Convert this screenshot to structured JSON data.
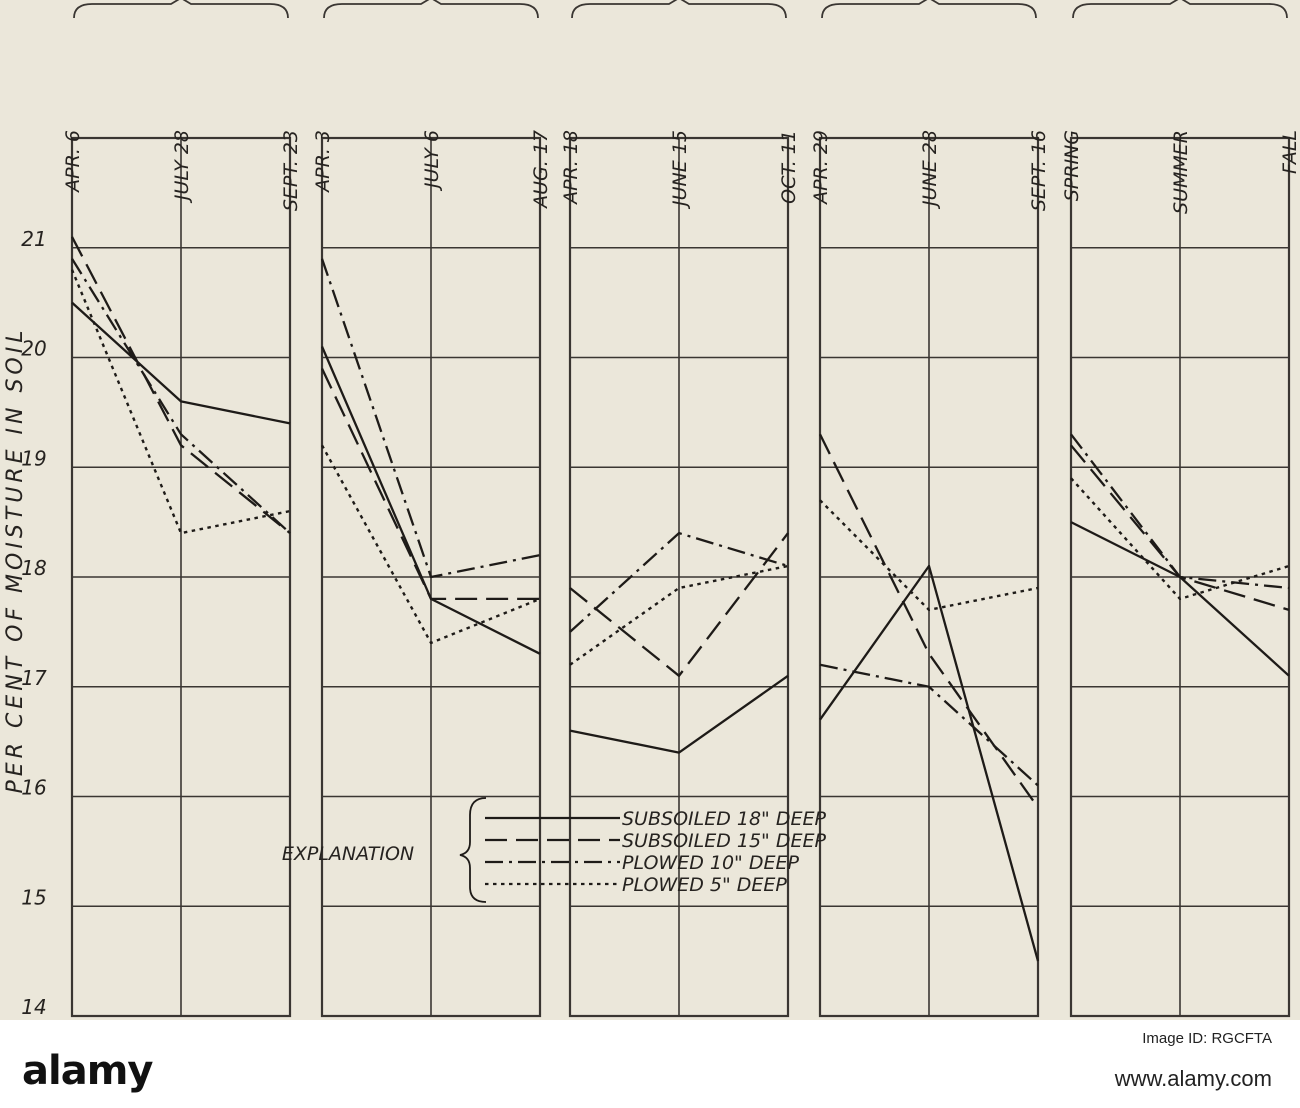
{
  "chart_data": {
    "type": "line",
    "ylabel": "PER CENT OF MOISTURE IN SOIL",
    "ylim": [
      14,
      22
    ],
    "yticks": [
      14,
      15,
      16,
      17,
      18,
      19,
      20,
      21
    ],
    "grid": true,
    "legend": {
      "title": "EXPLANATION",
      "placement": "bottom-center",
      "entries": [
        {
          "label": "SUBSOILED 18\" DEEP",
          "style": "solid"
        },
        {
          "label": "SUBSOILED 15\" DEEP",
          "style": "dashed"
        },
        {
          "label": "PLOWED 10\" DEEP",
          "style": "dash-dot"
        },
        {
          "label": "PLOWED 5\" DEEP",
          "style": "dotted"
        }
      ]
    },
    "panels": [
      {
        "categories": [
          "APR. 6",
          "JULY 28",
          "SEPT. 23"
        ],
        "series": [
          {
            "name": "SUBSOILED 18\" DEEP",
            "values": [
              20.5,
              19.6,
              19.4
            ]
          },
          {
            "name": "SUBSOILED 15\" DEEP",
            "values": [
              21.1,
              19.2,
              18.4
            ]
          },
          {
            "name": "PLOWED 10\" DEEP",
            "values": [
              20.9,
              19.3,
              18.4
            ]
          },
          {
            "name": "PLOWED 5\" DEEP",
            "values": [
              20.8,
              18.4,
              18.6
            ]
          }
        ]
      },
      {
        "categories": [
          "APR. 3",
          "JULY 6",
          "AUG. 17"
        ],
        "series": [
          {
            "name": "SUBSOILED 18\" DEEP",
            "values": [
              20.1,
              17.8,
              17.3
            ]
          },
          {
            "name": "SUBSOILED 15\" DEEP",
            "values": [
              19.9,
              17.8,
              17.8
            ]
          },
          {
            "name": "PLOWED 10\" DEEP",
            "values": [
              20.9,
              18.0,
              18.2
            ]
          },
          {
            "name": "PLOWED 5\" DEEP",
            "values": [
              19.2,
              17.4,
              17.8
            ]
          }
        ]
      },
      {
        "categories": [
          "APR. 18",
          "JUNE 15",
          "OCT. 11"
        ],
        "series": [
          {
            "name": "SUBSOILED 18\" DEEP",
            "values": [
              16.6,
              16.4,
              17.1
            ]
          },
          {
            "name": "SUBSOILED 15\" DEEP",
            "values": [
              17.9,
              17.1,
              18.4
            ]
          },
          {
            "name": "PLOWED 10\" DEEP",
            "values": [
              17.5,
              18.4,
              18.1
            ]
          },
          {
            "name": "PLOWED 5\" DEEP",
            "values": [
              17.2,
              17.9,
              18.1
            ]
          }
        ]
      },
      {
        "categories": [
          "APR. 29",
          "JUNE 28",
          "SEPT. 16"
        ],
        "series": [
          {
            "name": "SUBSOILED 18\" DEEP",
            "values": [
              16.7,
              18.1,
              14.5
            ]
          },
          {
            "name": "SUBSOILED 15\" DEEP",
            "values": [
              19.3,
              17.3,
              15.9
            ]
          },
          {
            "name": "PLOWED 10\" DEEP",
            "values": [
              17.2,
              17.0,
              16.1
            ]
          },
          {
            "name": "PLOWED 5\" DEEP",
            "values": [
              18.7,
              17.7,
              17.9
            ]
          }
        ]
      },
      {
        "categories": [
          "SPRING",
          "SUMMER",
          "FALL"
        ],
        "series": [
          {
            "name": "SUBSOILED 18\" DEEP",
            "values": [
              18.5,
              18.0,
              17.1
            ]
          },
          {
            "name": "SUBSOILED 15\" DEEP",
            "values": [
              19.2,
              18.0,
              17.7
            ]
          },
          {
            "name": "PLOWED 10\" DEEP",
            "values": [
              19.3,
              18.0,
              17.9
            ]
          },
          {
            "name": "PLOWED 5\" DEEP",
            "values": [
              18.9,
              17.8,
              18.1
            ]
          }
        ]
      }
    ]
  },
  "styles": {
    "line_color": "#1e1b18",
    "grid_color": "#3a3632",
    "paper_color": "#ebe7da"
  },
  "watermark": {
    "brand": "alamy",
    "image_id": "Image ID: RGCFTA",
    "url": "www.alamy.com"
  }
}
